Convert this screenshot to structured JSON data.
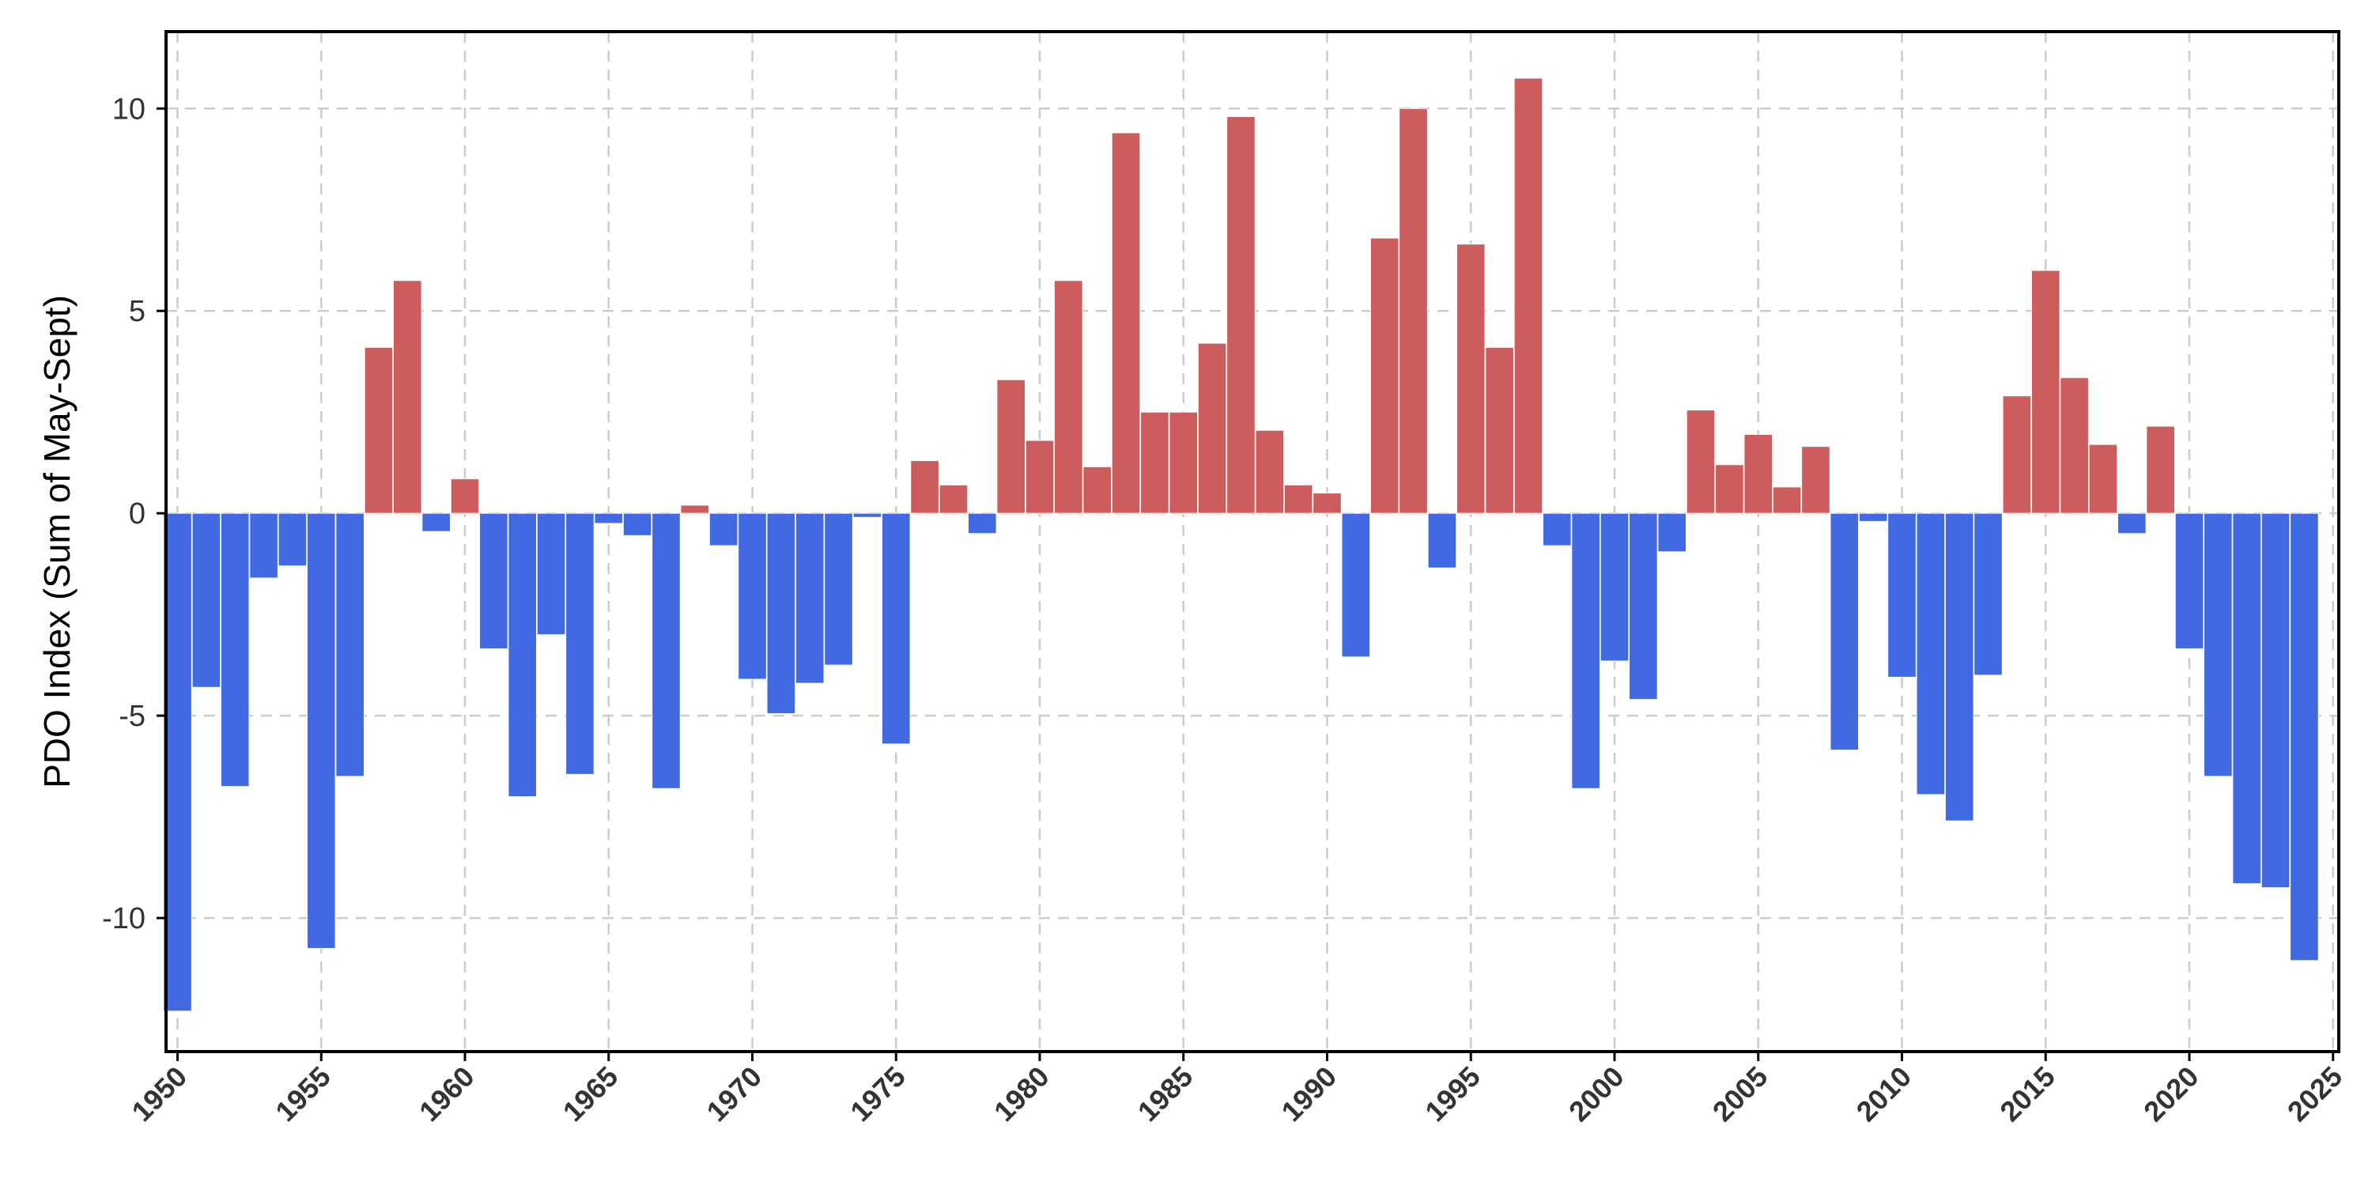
{
  "chart_data": {
    "type": "bar",
    "title": "",
    "xlabel": "",
    "ylabel": "PDO Index (Sum of May-Sept)",
    "xlim": [
      1949.6,
      2025.2
    ],
    "ylim": [
      -13.3,
      11.9
    ],
    "grid": true,
    "legend": "none",
    "colors": {
      "positive": "#cd5c5c",
      "negative": "#4169e1",
      "axis": "#000000",
      "grid": "#cccccc"
    },
    "x_ticks": [
      1950,
      1955,
      1960,
      1965,
      1970,
      1975,
      1980,
      1985,
      1990,
      1995,
      2000,
      2005,
      2010,
      2015,
      2020,
      2025
    ],
    "x_tick_labels": [
      "1950",
      "1955",
      "1960",
      "1965",
      "1970",
      "1975",
      "1980",
      "1985",
      "1990",
      "1995",
      "2000",
      "2005",
      "2010",
      "2015",
      "2020",
      "2025"
    ],
    "y_ticks": [
      -10,
      -5,
      0,
      5,
      10
    ],
    "y_tick_labels": [
      "-10",
      "-5",
      "0",
      "5",
      "10"
    ],
    "x": [
      1950,
      1951,
      1952,
      1953,
      1954,
      1955,
      1956,
      1957,
      1958,
      1959,
      1960,
      1961,
      1962,
      1963,
      1964,
      1965,
      1966,
      1967,
      1968,
      1969,
      1970,
      1971,
      1972,
      1973,
      1974,
      1975,
      1976,
      1977,
      1978,
      1979,
      1980,
      1981,
      1982,
      1983,
      1984,
      1985,
      1986,
      1987,
      1988,
      1989,
      1990,
      1991,
      1992,
      1993,
      1994,
      1995,
      1996,
      1997,
      1998,
      1999,
      2000,
      2001,
      2002,
      2003,
      2004,
      2005,
      2006,
      2007,
      2008,
      2009,
      2010,
      2011,
      2012,
      2013,
      2014,
      2015,
      2016,
      2017,
      2018,
      2019,
      2020,
      2021,
      2022,
      2023,
      2024
    ],
    "values": [
      -12.3,
      -4.3,
      -6.75,
      -1.6,
      -1.3,
      -10.75,
      -6.5,
      4.1,
      5.75,
      -0.45,
      0.85,
      -3.35,
      -7.0,
      -3.0,
      -6.45,
      -0.25,
      -0.55,
      -6.8,
      0.2,
      -0.8,
      -4.1,
      -4.95,
      -4.2,
      -3.75,
      -0.1,
      -5.7,
      1.3,
      0.7,
      -0.5,
      3.3,
      1.8,
      5.75,
      1.15,
      9.4,
      2.5,
      2.5,
      4.2,
      9.8,
      2.05,
      0.7,
      0.5,
      -3.55,
      6.8,
      10.0,
      -1.35,
      6.65,
      4.1,
      10.75,
      -0.8,
      -6.8,
      -3.65,
      -4.6,
      -0.95,
      2.55,
      1.2,
      1.95,
      0.65,
      1.65,
      -5.85,
      -0.2,
      -4.05,
      -6.95,
      -7.6,
      -4.0,
      2.9,
      6.0,
      3.35,
      1.7,
      -0.5,
      2.15,
      -3.35,
      -6.5,
      -9.15,
      -9.25,
      -11.05
    ]
  }
}
